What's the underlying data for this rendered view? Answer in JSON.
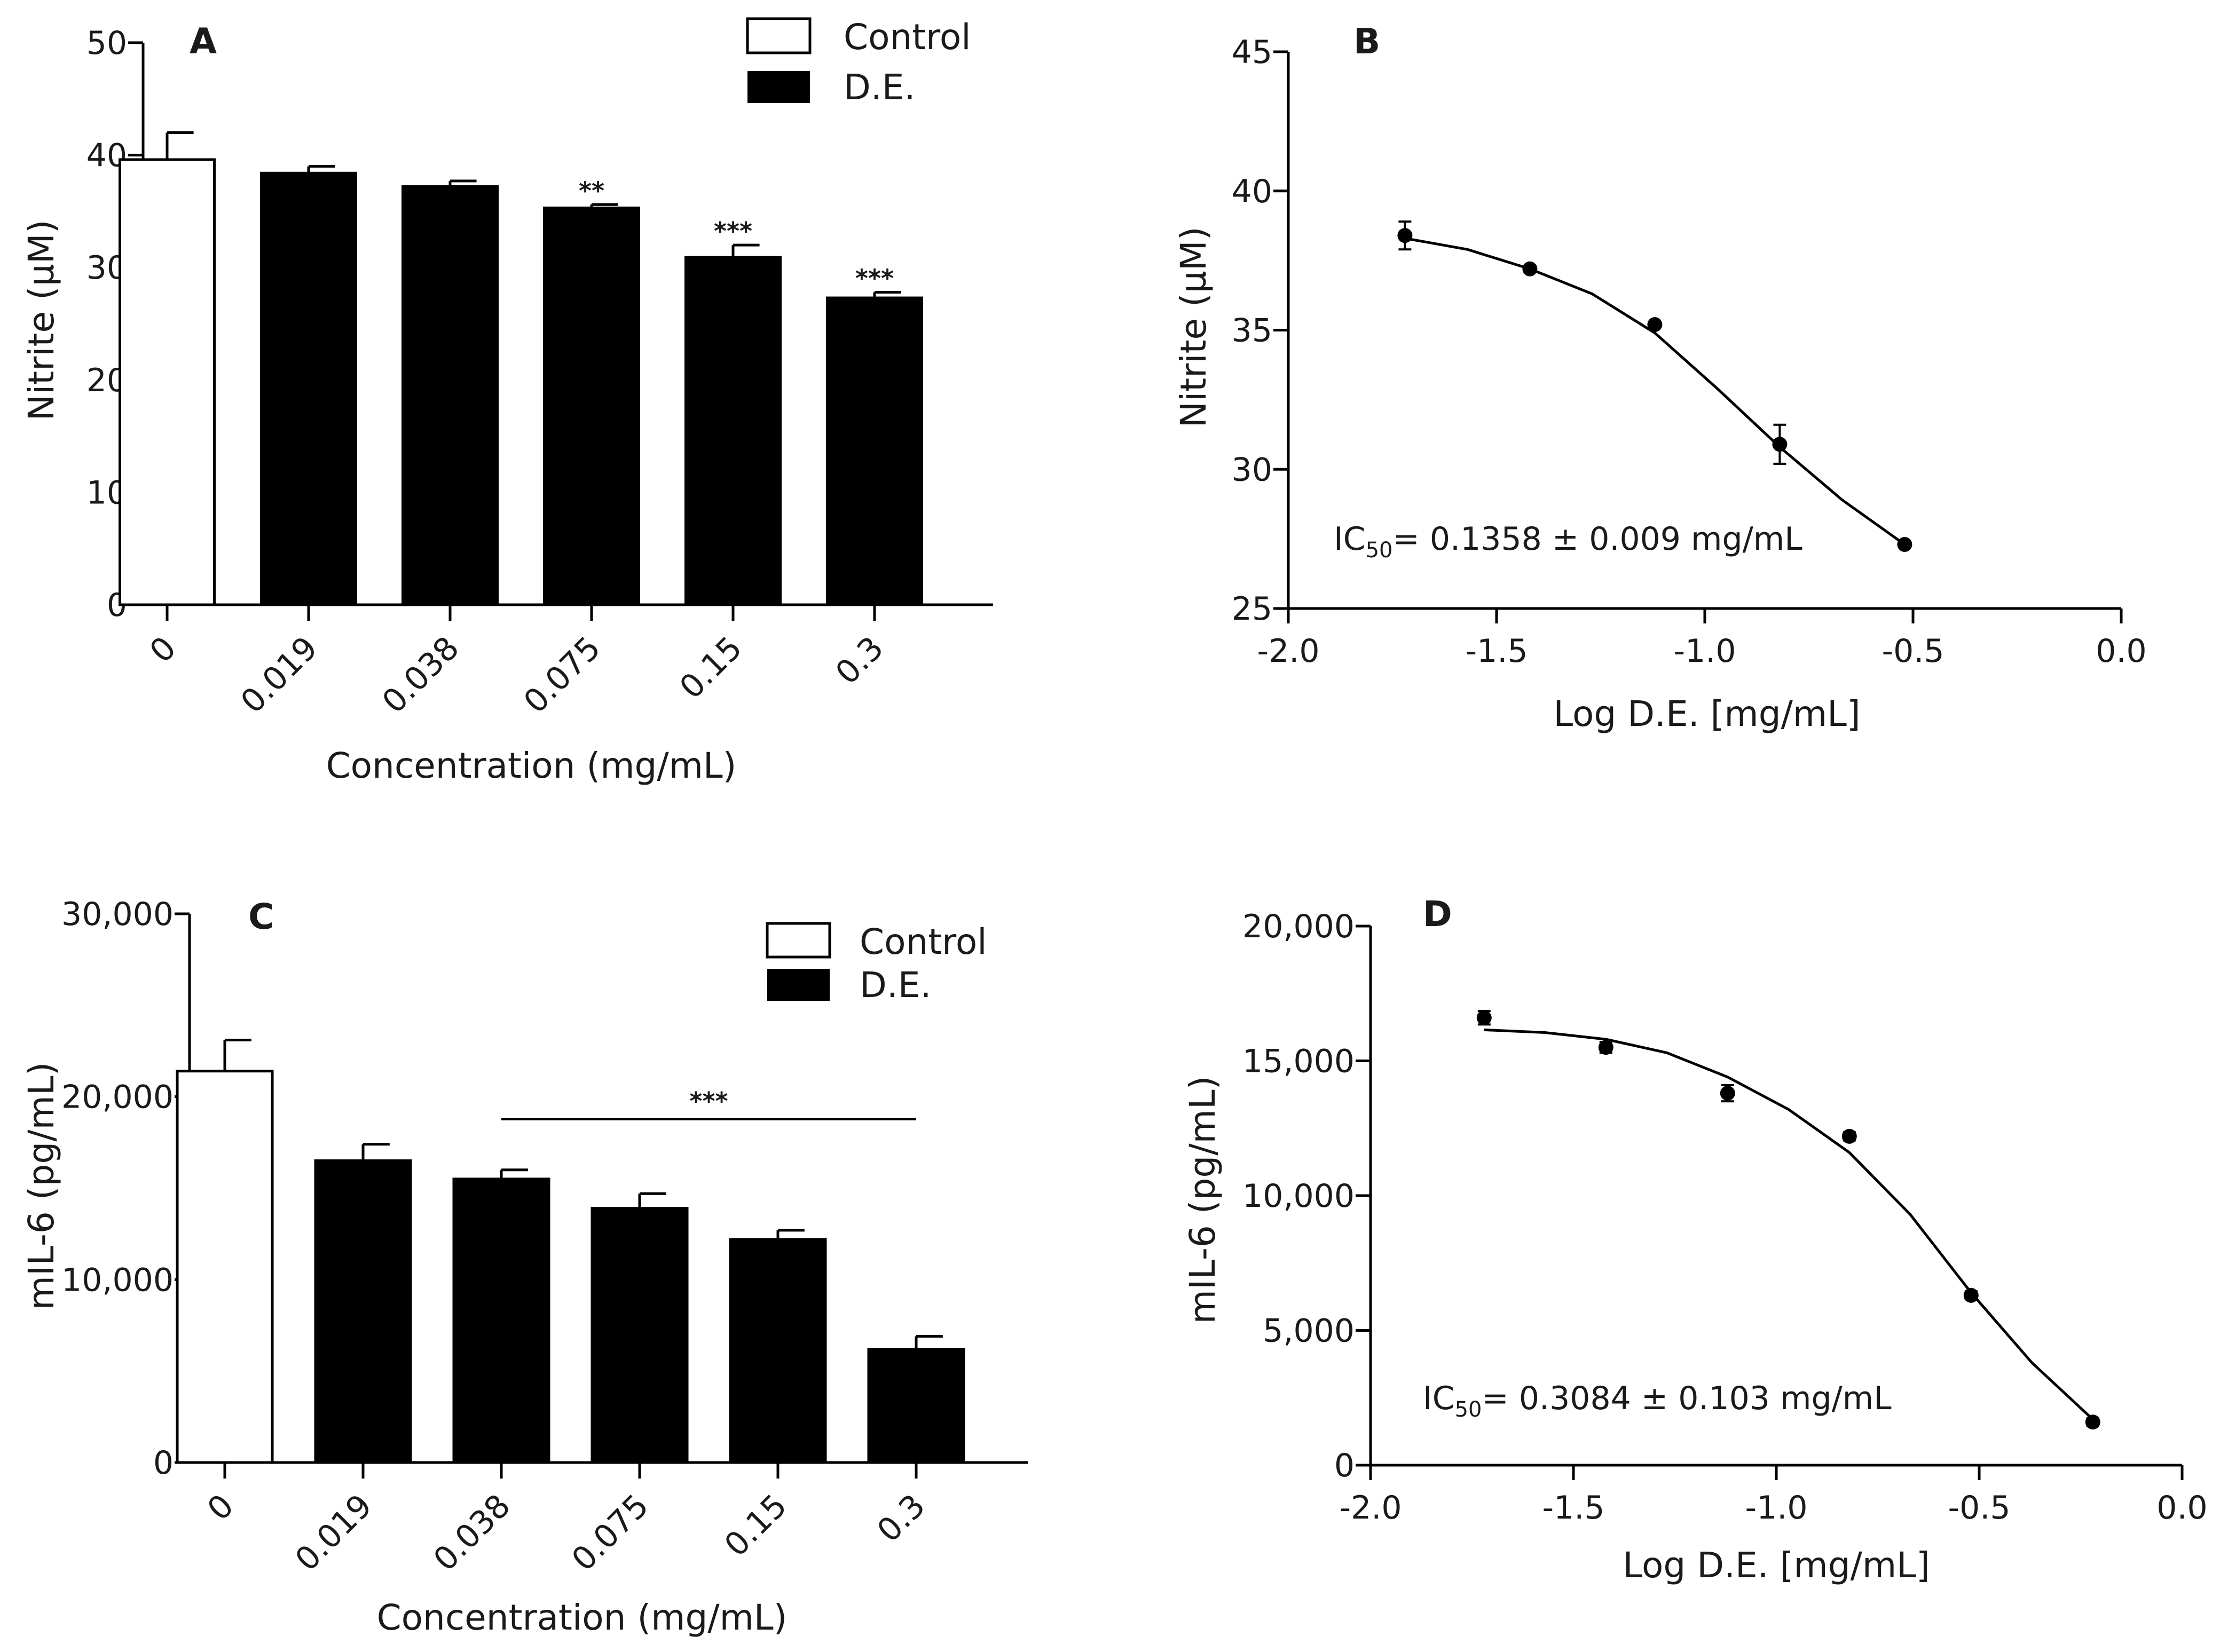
{
  "chart_data": [
    {
      "type": "bar",
      "panel": "A",
      "ylabel": "Nitrite (µM)",
      "xlabel": "Concentration (mg/mL)",
      "ylim": [
        0,
        50
      ],
      "yticks": [
        "0",
        "10",
        "20",
        "30",
        "40",
        "50"
      ],
      "categories": [
        "0",
        "0.019",
        "0.038",
        "0.075",
        "0.15",
        "0.3"
      ],
      "values": [
        39.6,
        38.4,
        37.2,
        35.3,
        30.9,
        27.3
      ],
      "errors": [
        2.4,
        0.6,
        0.5,
        0.3,
        1.1,
        0.5
      ],
      "fills": [
        "#ffffff",
        "#000000",
        "#000000",
        "#000000",
        "#000000",
        "#000000"
      ],
      "significance": [
        "",
        "",
        "",
        "**",
        "***",
        "***"
      ],
      "legend": [
        "Control",
        "D.E."
      ],
      "legend_position": "top-right"
    },
    {
      "type": "line",
      "panel": "B",
      "ylabel": "Nitrite (µM)",
      "xlabel": "Log D.E. [mg/mL]",
      "xlim": [
        -2.0,
        0.0
      ],
      "ylim": [
        25,
        45
      ],
      "xticks": [
        "-2.0",
        "-1.5",
        "-1.0",
        "-0.5",
        "0.0"
      ],
      "yticks": [
        "25",
        "30",
        "35",
        "40",
        "45"
      ],
      "points": {
        "x": [
          -1.72,
          -1.42,
          -1.12,
          -0.82,
          -0.52
        ],
        "y": [
          38.4,
          37.2,
          35.2,
          30.9,
          27.3
        ],
        "errors": [
          0.5,
          0.0,
          0.0,
          0.7,
          0.0
        ]
      },
      "fit": {
        "x": [
          -1.72,
          -1.57,
          -1.42,
          -1.27,
          -1.12,
          -0.97,
          -0.82,
          -0.67,
          -0.52
        ],
        "y": [
          38.3,
          37.9,
          37.2,
          36.3,
          34.9,
          32.9,
          30.8,
          28.9,
          27.3
        ]
      },
      "annotation": {
        "prefix": "IC",
        "subscript": "50",
        "text": "= 0.1358 ± 0.009 mg/mL"
      }
    },
    {
      "type": "bar",
      "panel": "C",
      "ylabel": "mIL-6 (pg/mL)",
      "xlabel": "Concentration (mg/mL)",
      "ylim": [
        0,
        30000
      ],
      "yticks": [
        "0",
        "10,000",
        "20,000",
        "30,000"
      ],
      "categories": [
        "0",
        "0.019",
        "0.038",
        "0.075",
        "0.15",
        "0.3"
      ],
      "values": [
        21400,
        16500,
        15500,
        13900,
        12200,
        6200
      ],
      "errors": [
        1700,
        900,
        500,
        800,
        500,
        700
      ],
      "fills": [
        "#ffffff",
        "#000000",
        "#000000",
        "#000000",
        "#000000",
        "#000000"
      ],
      "significance_bracket": {
        "label": "***",
        "from": 2,
        "to": 5
      },
      "legend": [
        "Control",
        "D.E."
      ],
      "legend_position": "top-right"
    },
    {
      "type": "line",
      "panel": "D",
      "ylabel": "mIL-6 (pg/mL)",
      "xlabel": "Log D.E. [mg/mL]",
      "xlim": [
        -2.0,
        0.0
      ],
      "ylim": [
        0,
        20000
      ],
      "xticks": [
        "-2.0",
        "-1.5",
        "-1.0",
        "-0.5",
        "0.0"
      ],
      "yticks": [
        "0",
        "5,000",
        "10,000",
        "15,000",
        "20,000"
      ],
      "points": {
        "x": [
          -1.72,
          -1.42,
          -1.12,
          -0.82,
          -0.52,
          -0.22
        ],
        "y": [
          16600,
          15500,
          13800,
          12200,
          6300,
          1600
        ],
        "errors": [
          250,
          200,
          300,
          150,
          150,
          150
        ]
      },
      "fit": {
        "x": [
          -1.72,
          -1.57,
          -1.42,
          -1.27,
          -1.12,
          -0.97,
          -0.82,
          -0.67,
          -0.52,
          -0.37,
          -0.22
        ],
        "y": [
          16150,
          16050,
          15800,
          15300,
          14400,
          13200,
          11600,
          9300,
          6400,
          3800,
          1700
        ]
      },
      "annotation": {
        "prefix": "IC",
        "subscript": "50",
        "text": "= 0.3084 ± 0.103 mg/mL"
      }
    }
  ]
}
